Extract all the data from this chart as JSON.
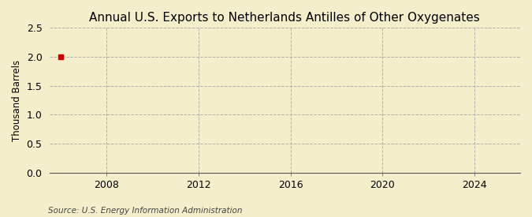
{
  "title": "Annual U.S. Exports to Netherlands Antilles of Other Oxygenates",
  "ylabel": "Thousand Barrels",
  "source_text": "Source: U.S. Energy Information Administration",
  "background_color": "#f5eecb",
  "plot_bg_color": "#f5eecb",
  "data_x": [
    2006
  ],
  "data_y": [
    2.0
  ],
  "data_color": "#cc0000",
  "xlim": [
    2005.5,
    2026
  ],
  "ylim": [
    0.0,
    2.5
  ],
  "xticks": [
    2008,
    2012,
    2016,
    2020,
    2024
  ],
  "yticks": [
    0.0,
    0.5,
    1.0,
    1.5,
    2.0,
    2.5
  ],
  "grid_color": "#aaaaaa",
  "grid_linestyle": "--",
  "title_fontsize": 11,
  "label_fontsize": 8.5,
  "tick_fontsize": 9,
  "source_fontsize": 7.5
}
